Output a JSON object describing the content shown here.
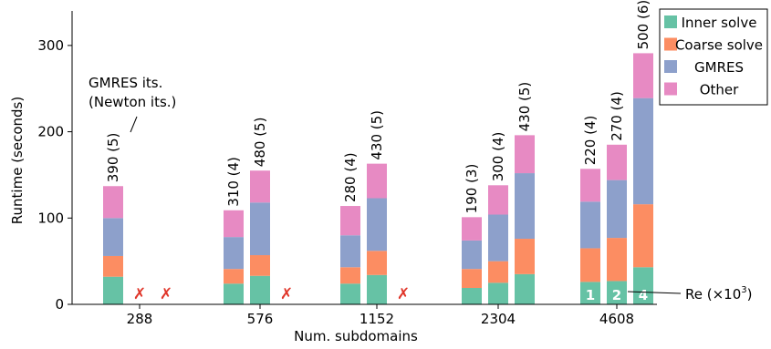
{
  "chart_data": {
    "type": "bar",
    "stacked": true,
    "xlabel": "Num. subdomains",
    "ylabel": "Runtime (seconds)",
    "ylim": [
      0,
      340
    ],
    "yticks": [
      0,
      100,
      200,
      300
    ],
    "grid": false,
    "legend_position": "top-right",
    "categories": [
      "288",
      "576",
      "1152",
      "2304",
      "4608"
    ],
    "series": [
      {
        "name": "Inner solve",
        "color": "#66c2a5"
      },
      {
        "name": "Coarse solve",
        "color": "#fc8d62"
      },
      {
        "name": "GMRES",
        "color": "#8da0cb"
      },
      {
        "name": "Other",
        "color": "#e78ac3"
      }
    ],
    "re_levels": [
      "1",
      "2",
      "4"
    ],
    "re_axis_label": "Re (×10",
    "re_axis_exponent": "3",
    "re_axis_close": ")",
    "annotation": [
      "GMRES its.",
      "(Newton its.)"
    ],
    "fail_marker": "✗",
    "groups": [
      {
        "category": "288",
        "bars": [
          {
            "re": "1",
            "label": "390 (5)",
            "values": [
              32,
              24,
              44,
              37
            ]
          },
          {
            "re": "2",
            "failed": true
          },
          {
            "re": "4",
            "failed": true
          }
        ]
      },
      {
        "category": "576",
        "bars": [
          {
            "re": "1",
            "label": "310 (4)",
            "values": [
              24,
              17,
              37,
              31
            ]
          },
          {
            "re": "2",
            "label": "480 (5)",
            "values": [
              33,
              24,
              61,
              37
            ]
          },
          {
            "re": "4",
            "failed": true
          }
        ]
      },
      {
        "category": "1152",
        "bars": [
          {
            "re": "1",
            "label": "280 (4)",
            "values": [
              24,
              19,
              37,
              34
            ]
          },
          {
            "re": "2",
            "label": "430 (5)",
            "values": [
              34,
              28,
              61,
              40
            ]
          },
          {
            "re": "4",
            "failed": true
          }
        ]
      },
      {
        "category": "2304",
        "bars": [
          {
            "re": "1",
            "label": "190 (3)",
            "values": [
              19,
              22,
              33,
              27
            ]
          },
          {
            "re": "2",
            "label": "300 (4)",
            "values": [
              25,
              25,
              54,
              34
            ]
          },
          {
            "re": "4",
            "label": "430 (5)",
            "values": [
              35,
              41,
              76,
              44
            ]
          }
        ]
      },
      {
        "category": "4608",
        "bars": [
          {
            "re": "1",
            "label": "220 (4)",
            "values": [
              26,
              39,
              54,
              38
            ]
          },
          {
            "re": "2",
            "label": "270 (4)",
            "values": [
              27,
              50,
              67,
              41
            ]
          },
          {
            "re": "4",
            "label": "500 (6)",
            "values": [
              43,
              73,
              123,
              52
            ]
          }
        ]
      }
    ]
  }
}
